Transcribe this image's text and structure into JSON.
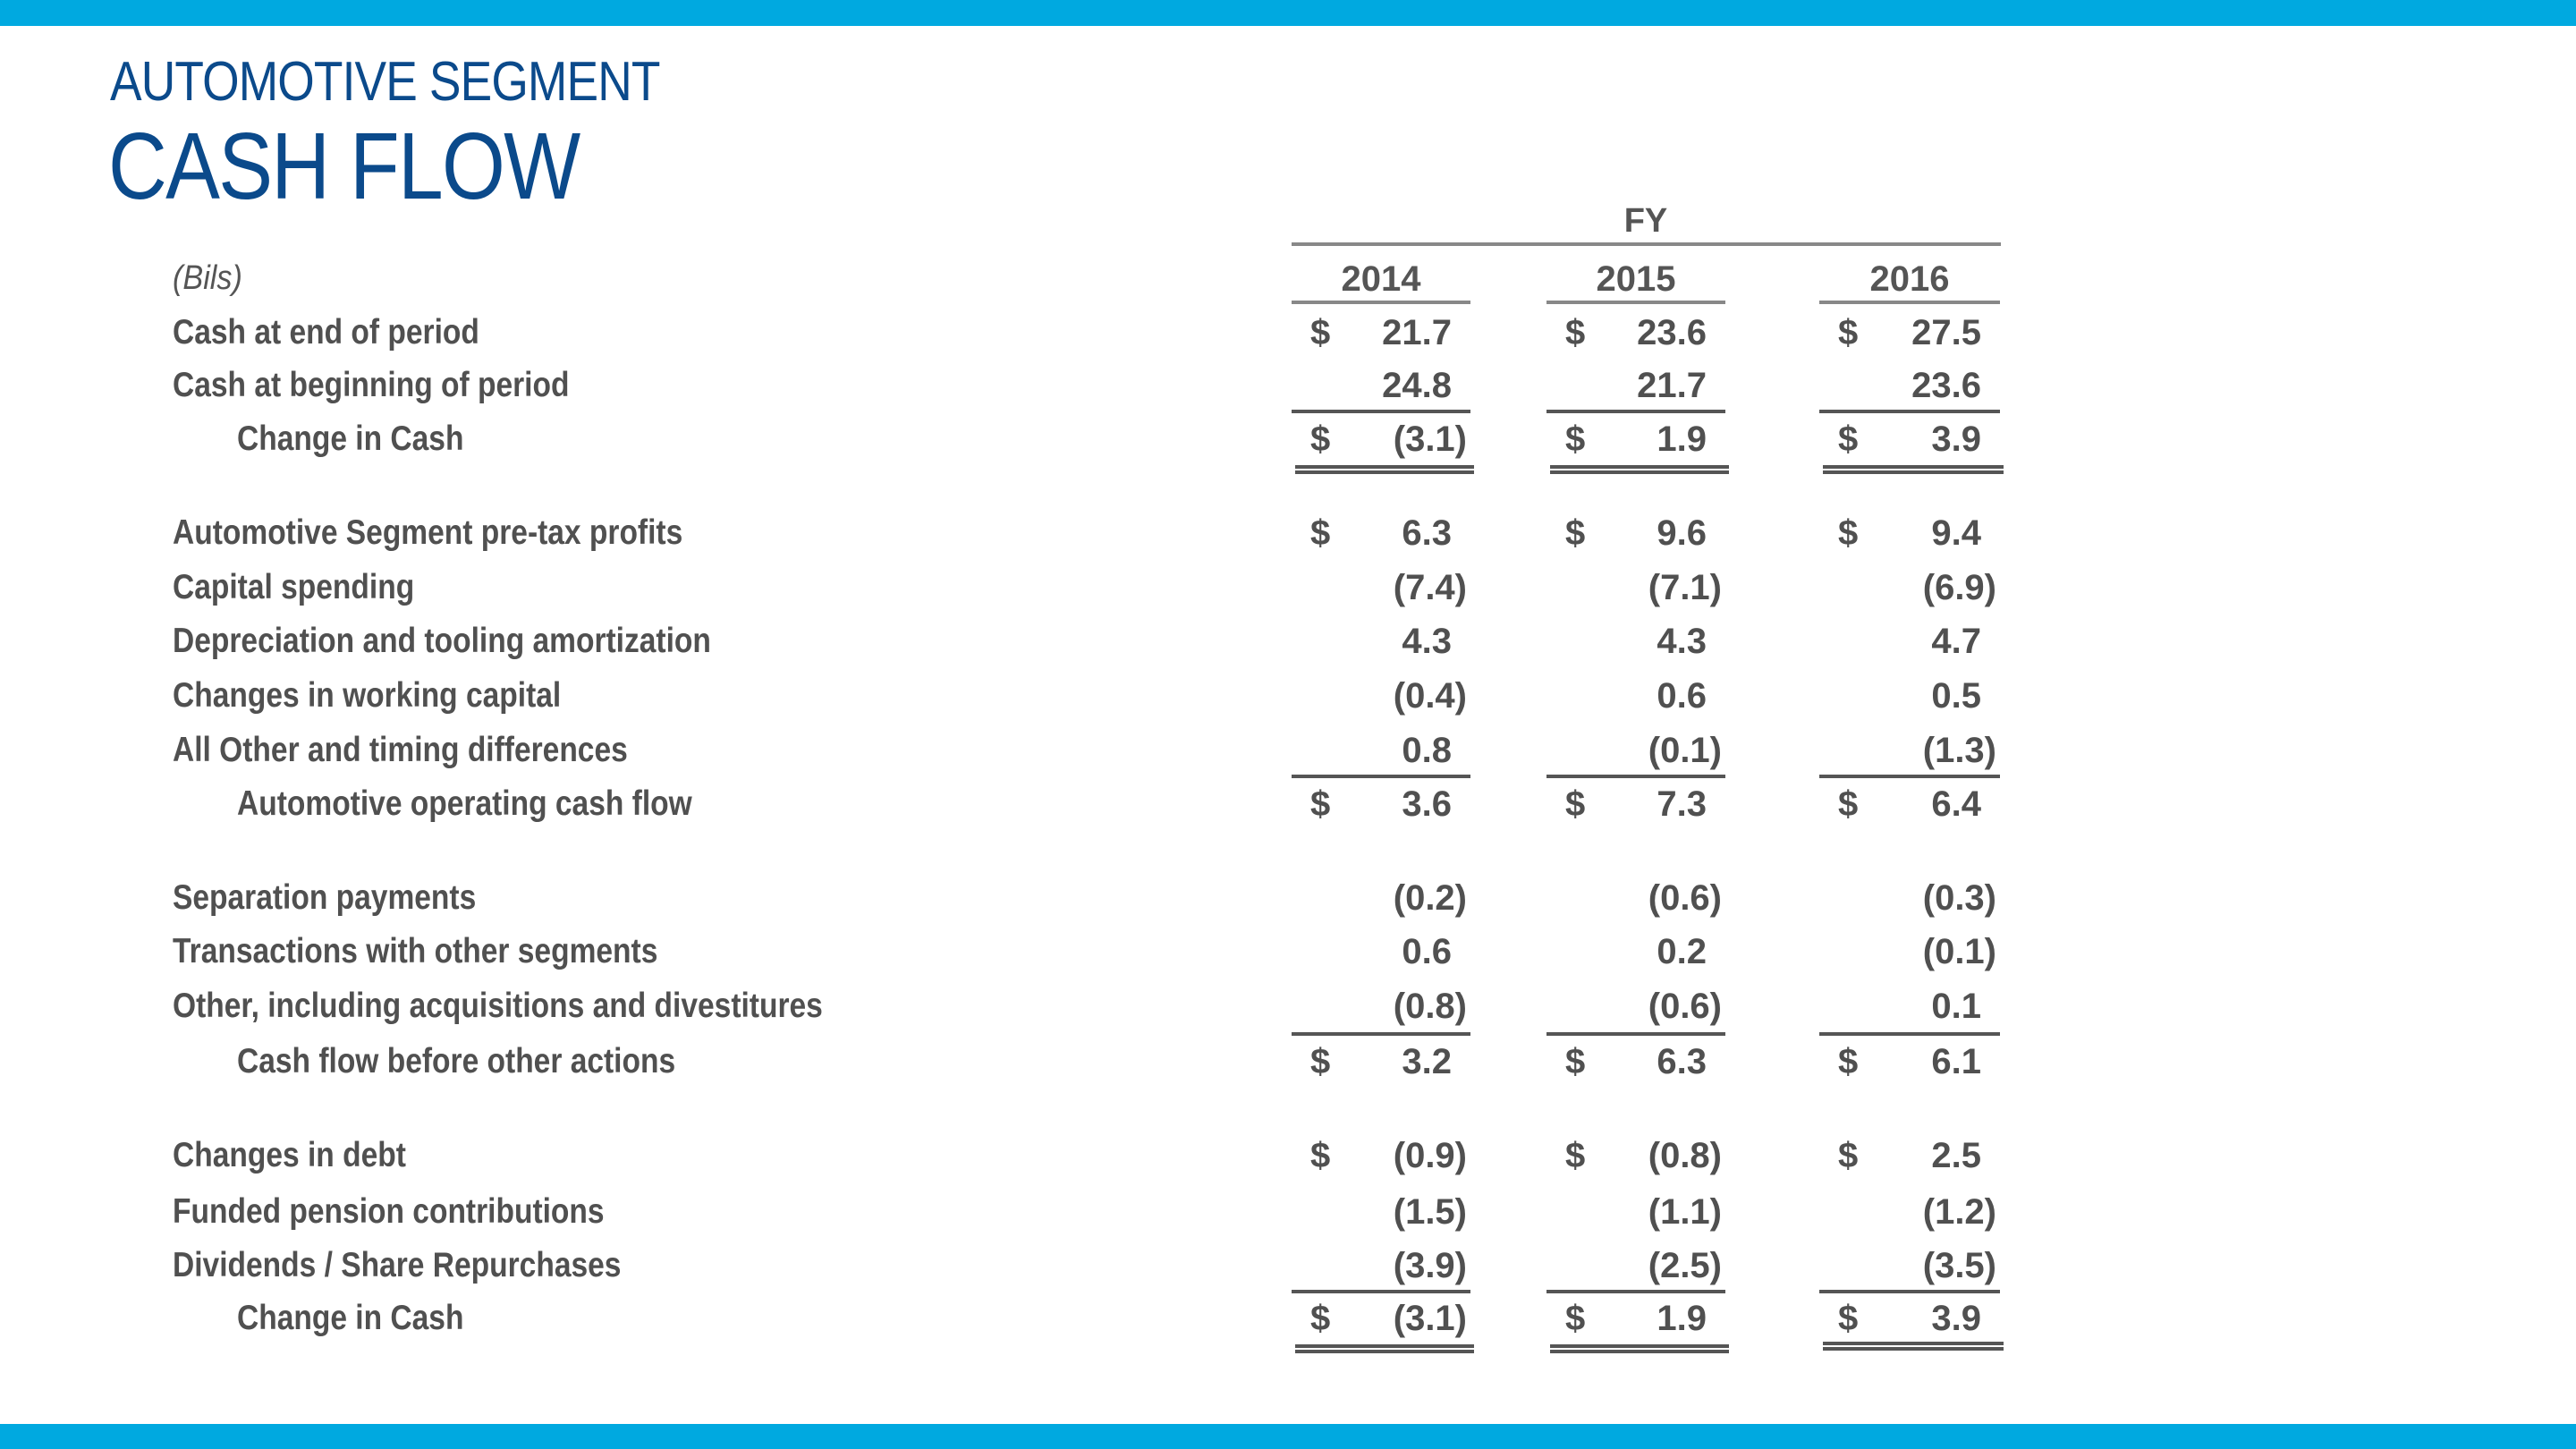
{
  "header": {
    "subtitle": "AUTOMOTIVE SEGMENT",
    "title": "CASH FLOW"
  },
  "colors": {
    "accent_bar": "#00a9e0",
    "title": "#0b4a8b",
    "text": "#505050"
  },
  "table": {
    "units": "(Bils)",
    "period_header": "FY",
    "currency_symbol": "$",
    "years": [
      "2014",
      "2015",
      "2016"
    ],
    "rows": [
      {
        "label": "Cash at end of period",
        "values": [
          "21.7",
          "23.6",
          "27.5"
        ],
        "dollar": true,
        "indent": false
      },
      {
        "label": "Cash at beginning of period",
        "values": [
          "24.8",
          "21.7",
          "23.6"
        ],
        "dollar": false,
        "indent": false
      },
      {
        "label": "Change in Cash",
        "values": [
          "(3.1)",
          "1.9",
          "3.9"
        ],
        "dollar": true,
        "indent": true
      },
      {
        "label": "Automotive Segment pre-tax profits",
        "values": [
          "6.3",
          "9.6",
          "9.4"
        ],
        "dollar": true,
        "indent": false
      },
      {
        "label": "Capital spending",
        "values": [
          "(7.4)",
          "(7.1)",
          "(6.9)"
        ],
        "dollar": false,
        "indent": false
      },
      {
        "label": "Depreciation and tooling amortization",
        "values": [
          "4.3",
          "4.3",
          "4.7"
        ],
        "dollar": false,
        "indent": false
      },
      {
        "label": "Changes in working capital",
        "values": [
          "(0.4)",
          "0.6",
          "0.5"
        ],
        "dollar": false,
        "indent": false
      },
      {
        "label": "All Other and timing differences",
        "values": [
          "0.8",
          "(0.1)",
          "(1.3)"
        ],
        "dollar": false,
        "indent": false
      },
      {
        "label": "Automotive operating cash flow",
        "values": [
          "3.6",
          "7.3",
          "6.4"
        ],
        "dollar": true,
        "indent": true
      },
      {
        "label": "Separation payments",
        "values": [
          "(0.2)",
          "(0.6)",
          "(0.3)"
        ],
        "dollar": false,
        "indent": false
      },
      {
        "label": "Transactions with other segments",
        "values": [
          "0.6",
          "0.2",
          "(0.1)"
        ],
        "dollar": false,
        "indent": false
      },
      {
        "label": "Other, including acquisitions and divestitures",
        "values": [
          "(0.8)",
          "(0.6)",
          "0.1"
        ],
        "dollar": false,
        "indent": false
      },
      {
        "label": "Cash flow before other actions",
        "values": [
          "3.2",
          "6.3",
          "6.1"
        ],
        "dollar": true,
        "indent": true
      },
      {
        "label": "Changes in debt",
        "values": [
          "(0.9)",
          "(0.8)",
          "2.5"
        ],
        "dollar": true,
        "indent": false
      },
      {
        "label": "Funded pension contributions",
        "values": [
          "(1.5)",
          "(1.1)",
          "(1.2)"
        ],
        "dollar": false,
        "indent": false
      },
      {
        "label": "Dividends / Share Repurchases",
        "values": [
          "(3.9)",
          "(2.5)",
          "(3.5)"
        ],
        "dollar": false,
        "indent": false
      },
      {
        "label": "Change in Cash",
        "values": [
          "(3.1)",
          "1.9",
          "3.9"
        ],
        "dollar": true,
        "indent": true
      }
    ]
  }
}
